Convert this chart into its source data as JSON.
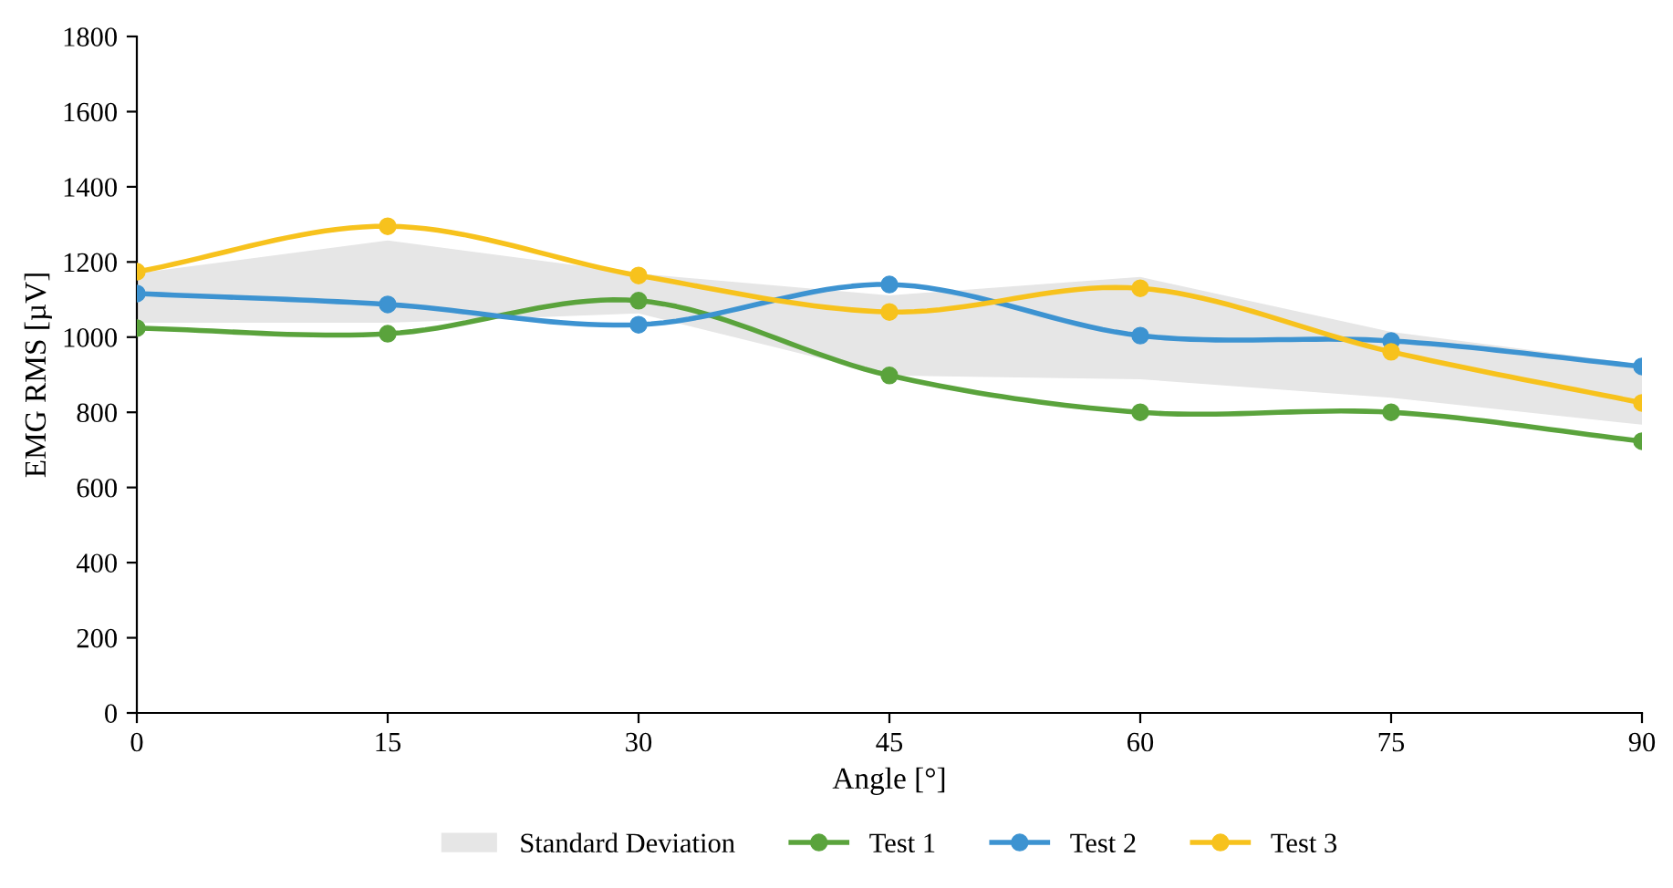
{
  "chart_data": {
    "type": "line",
    "xlabel": "Angle [°]",
    "ylabel": "EMG RMS [µV]",
    "x": [
      0,
      15,
      30,
      45,
      60,
      75,
      90
    ],
    "xlim": [
      0,
      90
    ],
    "xticks": [
      0,
      15,
      30,
      45,
      60,
      75,
      90
    ],
    "ylim": [
      0,
      1800
    ],
    "yticks": [
      0,
      200,
      400,
      600,
      800,
      1000,
      1200,
      1400,
      1600,
      1800
    ],
    "grid": false,
    "legend": "bottom",
    "marker": "circle",
    "line_style": "solid",
    "series": [
      {
        "name": "Standard Deviation",
        "type": "area",
        "color": "#e6e6e6",
        "values": [
          null,
          null,
          null,
          null,
          null,
          null,
          null
        ],
        "lower": [
          1038,
          1038,
          1063,
          898,
          888,
          839,
          767
        ],
        "upper": [
          1170,
          1257,
          1169,
          1111,
          1160,
          1014,
          927
        ]
      },
      {
        "name": "Test 1",
        "color": "#5aa33c",
        "values": [
          1024,
          1009,
          1097,
          898,
          800,
          800,
          723
        ]
      },
      {
        "name": "Test 2",
        "color": "#3d93d1",
        "values": [
          1116,
          1087,
          1033,
          1140,
          1004,
          990,
          922
        ]
      },
      {
        "name": "Test 3",
        "color": "#f7c21d",
        "values": [
          1174,
          1295,
          1164,
          1067,
          1130,
          961,
          825
        ]
      }
    ]
  }
}
